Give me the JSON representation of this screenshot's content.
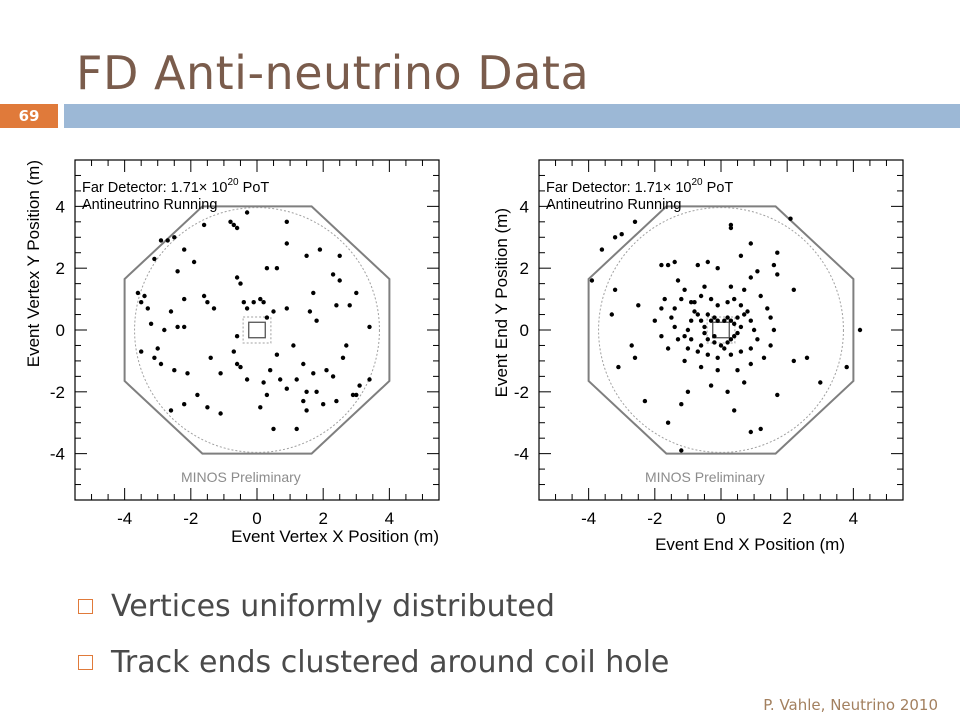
{
  "slide": {
    "title": "FD Anti-neutrino Data",
    "number": "69",
    "footer": "P. Vahle, Neutrino 2010"
  },
  "bullets": [
    "Vertices uniformly distributed",
    "Track ends clustered around coil hole"
  ],
  "colors": {
    "title": "#7a5c4c",
    "accent": "#e07a3a",
    "rule": "#9cb8d6",
    "bullet_text": "#4a4a4a",
    "footer": "#a3805f"
  },
  "chart_data": [
    {
      "type": "scatter",
      "ylabel": "Event Vertex Y Position (m)",
      "xlabel": "Event Vertex X Position (m)",
      "annotation_line1_pre": "Far Detector: 1.71",
      "annotation_times": "×",
      "annotation_base": " 10",
      "annotation_exp": "20",
      "annotation_post": " PoT",
      "annotation_line2": "Antineutrino Running",
      "watermark": "MINOS Preliminary",
      "xlim": [
        -5.5,
        5.5
      ],
      "ylim": [
        -5.5,
        5.5
      ],
      "xticks": [
        "-4",
        "-2",
        "0",
        "2",
        "4"
      ],
      "yticks": [
        "4",
        "2",
        "0",
        "-2",
        "-4"
      ],
      "points": [
        [
          -3.6,
          1.2
        ],
        [
          -3.5,
          0.9
        ],
        [
          -3.4,
          1.1
        ],
        [
          -3.3,
          0.7
        ],
        [
          -3.2,
          0.2
        ],
        [
          -3.5,
          -0.7
        ],
        [
          -3.0,
          -0.6
        ],
        [
          -2.9,
          -1.1
        ],
        [
          -3.1,
          -0.9
        ],
        [
          -2.6,
          0.6
        ],
        [
          -2.4,
          0.1
        ],
        [
          -2.2,
          0.1
        ],
        [
          -2.8,
          0.0
        ],
        [
          -3.1,
          2.3
        ],
        [
          -2.9,
          2.9
        ],
        [
          -2.7,
          2.9
        ],
        [
          -2.5,
          3.0
        ],
        [
          -2.2,
          2.6
        ],
        [
          -1.9,
          2.2
        ],
        [
          -2.4,
          1.9
        ],
        [
          -2.2,
          1.0
        ],
        [
          -1.6,
          1.1
        ],
        [
          -1.5,
          0.9
        ],
        [
          -1.3,
          0.7
        ],
        [
          -1.6,
          3.4
        ],
        [
          -0.8,
          3.5
        ],
        [
          -0.6,
          3.3
        ],
        [
          -0.7,
          3.4
        ],
        [
          -2.5,
          -1.3
        ],
        [
          -2.1,
          -1.4
        ],
        [
          -2.6,
          -2.6
        ],
        [
          -1.8,
          -2.1
        ],
        [
          -1.5,
          -2.5
        ],
        [
          -1.1,
          -2.7
        ],
        [
          -1.4,
          -0.9
        ],
        [
          -0.7,
          -0.7
        ],
        [
          -0.6,
          -1.1
        ],
        [
          -0.5,
          -1.2
        ],
        [
          -0.6,
          -0.2
        ],
        [
          -0.6,
          1.7
        ],
        [
          -0.3,
          0.7
        ],
        [
          -0.4,
          0.9
        ],
        [
          -0.1,
          0.9
        ],
        [
          0.1,
          1.0
        ],
        [
          0.2,
          0.9
        ],
        [
          0.3,
          0.4
        ],
        [
          0.5,
          0.6
        ],
        [
          0.9,
          0.7
        ],
        [
          0.6,
          -0.8
        ],
        [
          0.4,
          -1.3
        ],
        [
          0.2,
          -1.7
        ],
        [
          0.1,
          -2.5
        ],
        [
          0.7,
          -1.6
        ],
        [
          0.9,
          -1.9
        ],
        [
          1.1,
          -0.5
        ],
        [
          1.4,
          -1.1
        ],
        [
          1.2,
          -1.6
        ],
        [
          0.3,
          -2.1
        ],
        [
          0.5,
          -3.2
        ],
        [
          1.2,
          -3.2
        ],
        [
          1.4,
          -2.3
        ],
        [
          1.5,
          -2.0
        ],
        [
          1.5,
          -2.6
        ],
        [
          1.7,
          -1.4
        ],
        [
          1.8,
          -2.0
        ],
        [
          2.1,
          -1.3
        ],
        [
          2.3,
          -1.5
        ],
        [
          2.0,
          -2.4
        ],
        [
          2.4,
          -2.3
        ],
        [
          2.9,
          -2.1
        ],
        [
          3.0,
          -2.1
        ],
        [
          3.1,
          -1.8
        ],
        [
          3.4,
          -1.6
        ],
        [
          2.6,
          -0.9
        ],
        [
          2.7,
          -0.5
        ],
        [
          1.6,
          0.6
        ],
        [
          1.8,
          0.3
        ],
        [
          2.4,
          0.8
        ],
        [
          2.8,
          0.8
        ],
        [
          3.4,
          0.1
        ],
        [
          3.0,
          1.2
        ],
        [
          2.5,
          1.6
        ],
        [
          1.7,
          1.2
        ],
        [
          2.3,
          1.8
        ],
        [
          1.9,
          2.6
        ],
        [
          1.5,
          2.4
        ],
        [
          0.9,
          2.8
        ],
        [
          0.3,
          2.0
        ],
        [
          0.6,
          2.0
        ],
        [
          0.9,
          3.5
        ],
        [
          -0.3,
          3.8
        ],
        [
          -1.1,
          -1.4
        ],
        [
          -0.3,
          -1.6
        ],
        [
          -2.2,
          -2.4
        ],
        [
          -0.5,
          1.5
        ],
        [
          2.5,
          2.4
        ]
      ]
    },
    {
      "type": "scatter",
      "ylabel": "Event End Y Position (m)",
      "xlabel": "Event End X Position (m)",
      "annotation_line1_pre": "Far Detector: 1.71",
      "annotation_times": "×",
      "annotation_base": " 10",
      "annotation_exp": "20",
      "annotation_post": " PoT",
      "annotation_line2": "Antineutrino Running",
      "watermark": "MINOS Preliminary",
      "xlim": [
        -5.5,
        5.5
      ],
      "ylim": [
        -5.5,
        5.5
      ],
      "xticks": [
        "-4",
        "-2",
        "0",
        "2",
        "4"
      ],
      "yticks": [
        "4",
        "2",
        "0",
        "-2",
        "-4"
      ],
      "points": [
        [
          -0.4,
          0.5
        ],
        [
          -0.3,
          0.3
        ],
        [
          -0.2,
          0.4
        ],
        [
          -0.1,
          0.3
        ],
        [
          0.1,
          0.3
        ],
        [
          0.2,
          0.4
        ],
        [
          0.3,
          0.3
        ],
        [
          0.4,
          0.2
        ],
        [
          0.5,
          0.4
        ],
        [
          0.6,
          0.1
        ],
        [
          0.5,
          -0.1
        ],
        [
          0.4,
          -0.2
        ],
        [
          0.3,
          -0.3
        ],
        [
          0.2,
          -0.4
        ],
        [
          0.0,
          -0.5
        ],
        [
          -0.2,
          -0.4
        ],
        [
          -0.4,
          -0.3
        ],
        [
          -0.5,
          -0.1
        ],
        [
          -0.5,
          0.1
        ],
        [
          -0.6,
          0.3
        ],
        [
          -0.7,
          0.5
        ],
        [
          -0.8,
          0.6
        ],
        [
          -0.9,
          0.3
        ],
        [
          -1.0,
          0.0
        ],
        [
          -1.1,
          -0.2
        ],
        [
          -0.9,
          -0.3
        ],
        [
          -0.8,
          0.9
        ],
        [
          -0.6,
          1.1
        ],
        [
          -0.3,
          1.0
        ],
        [
          -0.1,
          0.8
        ],
        [
          0.2,
          0.9
        ],
        [
          0.4,
          1.0
        ],
        [
          0.6,
          0.8
        ],
        [
          0.8,
          0.6
        ],
        [
          0.9,
          0.3
        ],
        [
          1.0,
          0.0
        ],
        [
          1.1,
          -0.3
        ],
        [
          0.9,
          -0.6
        ],
        [
          0.6,
          -0.7
        ],
        [
          0.3,
          -0.8
        ],
        [
          -0.1,
          -0.9
        ],
        [
          -0.4,
          -0.8
        ],
        [
          -0.7,
          -0.7
        ],
        [
          -1.0,
          -0.6
        ],
        [
          -1.3,
          -0.3
        ],
        [
          -1.4,
          0.1
        ],
        [
          -1.5,
          0.4
        ],
        [
          -1.4,
          0.7
        ],
        [
          -1.2,
          1.0
        ],
        [
          -1.1,
          1.3
        ],
        [
          -0.5,
          1.4
        ],
        [
          0.3,
          1.4
        ],
        [
          0.7,
          1.3
        ],
        [
          1.2,
          1.1
        ],
        [
          1.4,
          0.7
        ],
        [
          1.5,
          0.4
        ],
        [
          1.6,
          0.0
        ],
        [
          1.5,
          -0.5
        ],
        [
          1.3,
          -0.9
        ],
        [
          0.9,
          -1.1
        ],
        [
          0.5,
          -1.3
        ],
        [
          -0.1,
          -1.3
        ],
        [
          -0.6,
          -1.2
        ],
        [
          -1.1,
          -1.0
        ],
        [
          -1.6,
          -0.6
        ],
        [
          -1.8,
          -0.2
        ],
        [
          -2.0,
          0.3
        ],
        [
          -1.8,
          0.7
        ],
        [
          -1.7,
          1.0
        ],
        [
          -2.5,
          0.8
        ],
        [
          -3.3,
          0.5
        ],
        [
          -3.1,
          -1.2
        ],
        [
          -2.7,
          -0.5
        ],
        [
          -2.6,
          -0.9
        ],
        [
          -2.3,
          -2.3
        ],
        [
          -1.6,
          -3.0
        ],
        [
          -1.2,
          -2.4
        ],
        [
          -1.0,
          -2.0
        ],
        [
          -0.3,
          -1.8
        ],
        [
          0.2,
          -2.0
        ],
        [
          0.4,
          -2.6
        ],
        [
          0.7,
          -1.7
        ],
        [
          0.9,
          -3.3
        ],
        [
          1.2,
          -3.2
        ],
        [
          1.7,
          -2.1
        ],
        [
          2.2,
          -1.0
        ],
        [
          2.6,
          -0.9
        ],
        [
          3.0,
          -1.7
        ],
        [
          3.8,
          -1.2
        ],
        [
          4.2,
          0.0
        ],
        [
          -3.9,
          1.6
        ],
        [
          -3.2,
          1.3
        ],
        [
          -3.6,
          2.6
        ],
        [
          -3.2,
          3.0
        ],
        [
          -3.0,
          3.1
        ],
        [
          -2.6,
          3.5
        ],
        [
          -1.8,
          2.1
        ],
        [
          -1.6,
          2.1
        ],
        [
          -1.4,
          2.2
        ],
        [
          -0.7,
          2.1
        ],
        [
          -0.4,
          2.2
        ],
        [
          -0.1,
          2.0
        ],
        [
          0.3,
          3.3
        ],
        [
          0.3,
          3.4
        ],
        [
          0.6,
          2.4
        ],
        [
          0.9,
          1.7
        ],
        [
          1.1,
          1.9
        ],
        [
          1.6,
          2.1
        ],
        [
          1.7,
          2.5
        ],
        [
          1.7,
          1.8
        ],
        [
          2.2,
          1.3
        ],
        [
          0.9,
          2.8
        ],
        [
          -1.3,
          1.6
        ],
        [
          -1.2,
          -3.9
        ],
        [
          2.1,
          3.6
        ],
        [
          -0.2,
          -0.2
        ],
        [
          0.1,
          -0.6
        ],
        [
          -0.6,
          -0.5
        ],
        [
          0.7,
          0.5
        ],
        [
          -0.9,
          0.9
        ]
      ]
    }
  ]
}
